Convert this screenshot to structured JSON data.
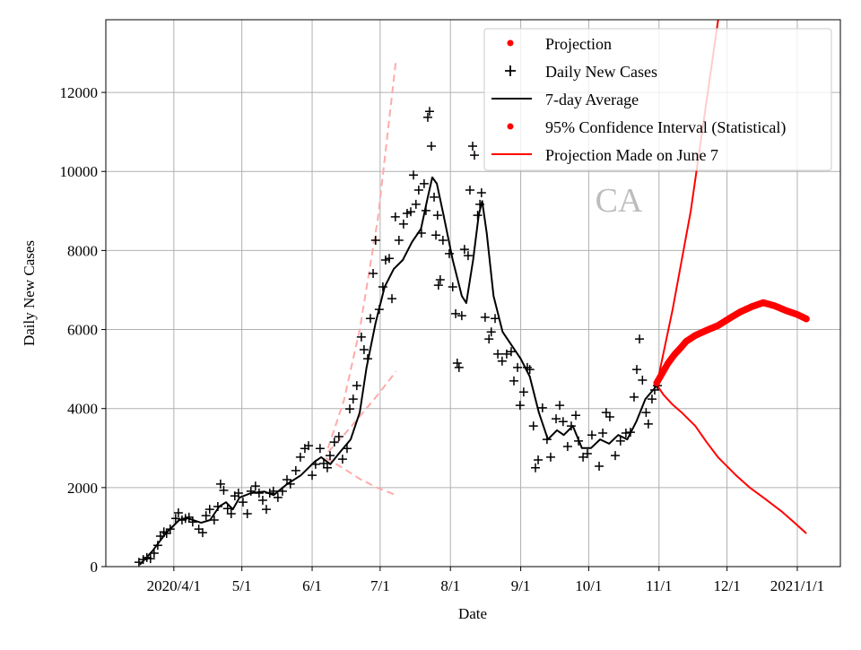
{
  "chart_data": {
    "type": "line",
    "title": "CA",
    "xlabel": "Date",
    "ylabel": "Daily New Cases",
    "x_units": "days since 2020-04-01",
    "xlim": [
      -30,
      294
    ],
    "ylim": [
      0,
      13840
    ],
    "grid": true,
    "legend_position": "top-right",
    "x_ticks": [
      {
        "day": 0,
        "label": "2020/4/1"
      },
      {
        "day": 30,
        "label": "5/1"
      },
      {
        "day": 61,
        "label": "6/1"
      },
      {
        "day": 91,
        "label": "7/1"
      },
      {
        "day": 122,
        "label": "8/1"
      },
      {
        "day": 153,
        "label": "9/1"
      },
      {
        "day": 183,
        "label": "10/1"
      },
      {
        "day": 214,
        "label": "11/1"
      },
      {
        "day": 244,
        "label": "12/1"
      },
      {
        "day": 275,
        "label": "2021/1/1"
      }
    ],
    "y_ticks": [
      0,
      2000,
      4000,
      6000,
      8000,
      10000,
      12000
    ],
    "legend": [
      {
        "label": "Projection",
        "marker": "dot",
        "color": "#ff0000"
      },
      {
        "label": "Daily New Cases",
        "marker": "plus",
        "color": "#000000"
      },
      {
        "label": "7-day Average",
        "marker": "line",
        "color": "#000000"
      },
      {
        "label": "95% Confidence Interval (Statistical)",
        "marker": "dot",
        "color": "#ff0000"
      },
      {
        "label": "Projection Made on June 7",
        "marker": "line",
        "color": "#ff0000"
      }
    ],
    "series": [
      {
        "name": "Daily New Cases",
        "type": "scatter",
        "color": "#000000",
        "points": [
          [
            -15.4,
            110
          ],
          [
            -13.5,
            180
          ],
          [
            -11.9,
            230
          ],
          [
            -10.3,
            200
          ],
          [
            -8.7,
            340
          ],
          [
            -7.1,
            540
          ],
          [
            -5.9,
            770
          ],
          [
            -4.4,
            880
          ],
          [
            -3.2,
            840
          ],
          [
            -1.6,
            950
          ],
          [
            0.8,
            1220
          ],
          [
            2,
            1360
          ],
          [
            3.6,
            1180
          ],
          [
            5.1,
            1220
          ],
          [
            6.7,
            1250
          ],
          [
            8.3,
            1130
          ],
          [
            11,
            950
          ],
          [
            12.7,
            860
          ],
          [
            14.2,
            1290
          ],
          [
            15.8,
            1450
          ],
          [
            17.8,
            1180
          ],
          [
            19.4,
            1520
          ],
          [
            20.6,
            2090
          ],
          [
            22,
            1930
          ],
          [
            23.7,
            1470
          ],
          [
            25.3,
            1340
          ],
          [
            26.9,
            1790
          ],
          [
            28.5,
            1860
          ],
          [
            30.5,
            1630
          ],
          [
            32.4,
            1340
          ],
          [
            34,
            1910
          ],
          [
            36,
            2040
          ],
          [
            37.6,
            1860
          ],
          [
            39.2,
            1680
          ],
          [
            40.8,
            1450
          ],
          [
            42.3,
            1860
          ],
          [
            43.9,
            1910
          ],
          [
            45.9,
            1750
          ],
          [
            47.9,
            1910
          ],
          [
            49.9,
            2200
          ],
          [
            51.4,
            2090
          ],
          [
            53.8,
            2430
          ],
          [
            55.8,
            2770
          ],
          [
            57.8,
            2990
          ],
          [
            59.4,
            3060
          ],
          [
            61,
            2310
          ],
          [
            62.5,
            2590
          ],
          [
            64.5,
            2990
          ],
          [
            66.1,
            2610
          ],
          [
            67.7,
            2500
          ],
          [
            68.9,
            2810
          ],
          [
            70.8,
            3150
          ],
          [
            72.8,
            3290
          ],
          [
            74.4,
            2720
          ],
          [
            76.4,
            2990
          ],
          [
            77.6,
            3990
          ],
          [
            79.1,
            4240
          ],
          [
            80.7,
            4580
          ],
          [
            82.7,
            5810
          ],
          [
            83.9,
            5490
          ],
          [
            85.5,
            5260
          ],
          [
            86.7,
            6280
          ],
          [
            87.9,
            7420
          ],
          [
            89,
            8260
          ],
          [
            90.6,
            6510
          ],
          [
            92.2,
            7080
          ],
          [
            93.4,
            7760
          ],
          [
            95,
            7800
          ],
          [
            96.2,
            6780
          ],
          [
            97.7,
            8850
          ],
          [
            99.3,
            8260
          ],
          [
            101.3,
            8670
          ],
          [
            102.9,
            8940
          ],
          [
            104.5,
            8980
          ],
          [
            105.7,
            9910
          ],
          [
            106.8,
            9170
          ],
          [
            108,
            9530
          ],
          [
            109.2,
            8440
          ],
          [
            110.4,
            9690
          ],
          [
            111.2,
            9010
          ],
          [
            112,
            11370
          ],
          [
            112.8,
            11520
          ],
          [
            113.6,
            10640
          ],
          [
            114.8,
            9350
          ],
          [
            115.6,
            8390
          ],
          [
            116.3,
            8890
          ],
          [
            116.7,
            7120
          ],
          [
            117.5,
            7260
          ],
          [
            118.7,
            8260
          ],
          [
            121.5,
            7920
          ],
          [
            123,
            7080
          ],
          [
            124.3,
            6400
          ],
          [
            125,
            5150
          ],
          [
            125.8,
            5040
          ],
          [
            127,
            6350
          ],
          [
            128.2,
            8030
          ],
          [
            129.8,
            7870
          ],
          [
            130.6,
            9530
          ],
          [
            131.8,
            10640
          ],
          [
            132.6,
            10410
          ],
          [
            134,
            8890
          ],
          [
            135,
            9170
          ],
          [
            135.7,
            9460
          ],
          [
            137.3,
            6310
          ],
          [
            139,
            5760
          ],
          [
            140,
            5940
          ],
          [
            141.7,
            6280
          ],
          [
            142.9,
            5380
          ],
          [
            144.8,
            5200
          ],
          [
            146.8,
            5380
          ],
          [
            148.8,
            5440
          ],
          [
            150,
            4700
          ],
          [
            151.6,
            5040
          ],
          [
            152.7,
            4080
          ],
          [
            154.3,
            4420
          ],
          [
            155.9,
            5040
          ],
          [
            157,
            4990
          ],
          [
            158.6,
            3560
          ],
          [
            159.5,
            2500
          ],
          [
            160.7,
            2700
          ],
          [
            162.6,
            4020
          ],
          [
            164.6,
            3220
          ],
          [
            166.2,
            2770
          ],
          [
            168.6,
            3740
          ],
          [
            170.2,
            4080
          ],
          [
            171.7,
            3670
          ],
          [
            173.7,
            3040
          ],
          [
            175.3,
            3560
          ],
          [
            177.3,
            3830
          ],
          [
            178.5,
            3180
          ],
          [
            180.5,
            2770
          ],
          [
            182.4,
            2860
          ],
          [
            184.4,
            3330
          ],
          [
            187.6,
            2540
          ],
          [
            189.2,
            3380
          ],
          [
            190.7,
            3900
          ],
          [
            192.3,
            3790
          ],
          [
            194.7,
            2810
          ],
          [
            197,
            3180
          ],
          [
            199.4,
            3380
          ],
          [
            201.4,
            3400
          ],
          [
            203,
            4290
          ],
          [
            204.2,
            4990
          ],
          [
            205.4,
            5760
          ],
          [
            206.7,
            4720
          ],
          [
            208.3,
            3900
          ],
          [
            209.3,
            3610
          ],
          [
            210.9,
            4240
          ],
          [
            212.1,
            4470
          ],
          [
            213.3,
            4580
          ]
        ]
      },
      {
        "name": "7-day Average",
        "type": "line",
        "color": "#000000",
        "points": [
          [
            -15,
            50
          ],
          [
            -9.5,
            390
          ],
          [
            -3.6,
            840
          ],
          [
            2.4,
            1180
          ],
          [
            6.3,
            1220
          ],
          [
            12,
            1110
          ],
          [
            16,
            1180
          ],
          [
            20,
            1520
          ],
          [
            23,
            1630
          ],
          [
            26,
            1450
          ],
          [
            29,
            1750
          ],
          [
            34,
            1860
          ],
          [
            40,
            1900
          ],
          [
            44,
            1810
          ],
          [
            50,
            2090
          ],
          [
            56,
            2310
          ],
          [
            62,
            2650
          ],
          [
            65,
            2770
          ],
          [
            69,
            2590
          ],
          [
            73,
            2880
          ],
          [
            78,
            3220
          ],
          [
            82,
            3900
          ],
          [
            85,
            5040
          ],
          [
            89,
            6170
          ],
          [
            93,
            7080
          ],
          [
            97,
            7530
          ],
          [
            101,
            7760
          ],
          [
            105,
            8210
          ],
          [
            109,
            8550
          ],
          [
            112,
            9340
          ],
          [
            114,
            9850
          ],
          [
            116,
            9690
          ],
          [
            119,
            8890
          ],
          [
            123,
            7760
          ],
          [
            127,
            6850
          ],
          [
            129,
            6670
          ],
          [
            132,
            7760
          ],
          [
            134.5,
            8900
          ],
          [
            136,
            9250
          ],
          [
            138,
            8440
          ],
          [
            141,
            6850
          ],
          [
            145,
            5940
          ],
          [
            149,
            5600
          ],
          [
            153,
            5260
          ],
          [
            157,
            4810
          ],
          [
            161,
            3900
          ],
          [
            165,
            3220
          ],
          [
            169,
            3450
          ],
          [
            172,
            3330
          ],
          [
            176,
            3560
          ],
          [
            180,
            3000
          ],
          [
            184,
            3000
          ],
          [
            188,
            3220
          ],
          [
            192,
            3110
          ],
          [
            196,
            3330
          ],
          [
            200,
            3220
          ],
          [
            204,
            3670
          ],
          [
            208,
            4240
          ],
          [
            213,
            4580
          ]
        ]
      },
      {
        "name": "Projection",
        "type": "scatter",
        "color": "#ff0000",
        "points": [
          [
            213,
            4650
          ],
          [
            216,
            4950
          ],
          [
            218,
            5150
          ],
          [
            221,
            5380
          ],
          [
            223,
            5500
          ],
          [
            226,
            5700
          ],
          [
            230,
            5850
          ],
          [
            235,
            5980
          ],
          [
            240,
            6100
          ],
          [
            245,
            6280
          ],
          [
            250,
            6450
          ],
          [
            255,
            6580
          ],
          [
            260,
            6680
          ],
          [
            265,
            6600
          ],
          [
            270,
            6480
          ],
          [
            275,
            6380
          ],
          [
            279,
            6270
          ]
        ]
      },
      {
        "name": "95% Confidence Interval (Statistical) upper",
        "type": "line",
        "color": "#ff0000",
        "points": [
          [
            213,
            4600
          ],
          [
            220,
            6500
          ],
          [
            228,
            9000
          ],
          [
            235,
            11800
          ],
          [
            241,
            14200
          ]
        ]
      },
      {
        "name": "95% Confidence Interval (Statistical) lower",
        "type": "line",
        "color": "#ff0000",
        "points": [
          [
            213,
            4600
          ],
          [
            216,
            4350
          ],
          [
            220,
            4100
          ],
          [
            224,
            3900
          ],
          [
            230,
            3560
          ],
          [
            235,
            3150
          ],
          [
            240,
            2770
          ],
          [
            248,
            2310
          ],
          [
            254,
            2000
          ],
          [
            260,
            1750
          ],
          [
            268,
            1400
          ],
          [
            274,
            1100
          ],
          [
            279,
            840
          ]
        ]
      },
      {
        "name": "Projection Made on June 7 upper",
        "type": "dashed",
        "color": "#ffaaaa",
        "points": [
          [
            68,
            3000
          ],
          [
            75,
            4200
          ],
          [
            82,
            6000
          ],
          [
            90,
            8800
          ],
          [
            98,
            12840
          ]
        ]
      },
      {
        "name": "Projection Made on June 7 middle",
        "type": "dashed",
        "color": "#ffaaaa",
        "points": [
          [
            68,
            2900
          ],
          [
            75,
            3330
          ],
          [
            82,
            3800
          ],
          [
            90,
            4350
          ],
          [
            98,
            4940
          ]
        ]
      },
      {
        "name": "Projection Made on June 7 lower",
        "type": "dashed",
        "color": "#ffaaaa",
        "points": [
          [
            67,
            2750
          ],
          [
            75,
            2480
          ],
          [
            82,
            2220
          ],
          [
            90,
            1990
          ],
          [
            98,
            1810
          ]
        ]
      }
    ]
  }
}
